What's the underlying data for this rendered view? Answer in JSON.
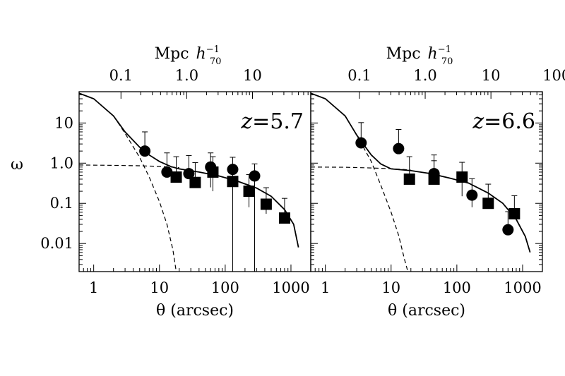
{
  "chart_data": {
    "type": "scatter",
    "y_axis": {
      "label": "ω",
      "scale": "log",
      "range": [
        0.002,
        60
      ],
      "ticks": [
        10,
        1.0,
        0.1,
        0.01
      ],
      "tick_labels": [
        "10",
        "1.0",
        "0.1",
        "0.01"
      ]
    },
    "x_axis": {
      "label": "θ (arcsec)",
      "scale": "log",
      "range": [
        0.6,
        2000
      ],
      "ticks": [
        1,
        10,
        100,
        1000
      ],
      "tick_labels": [
        "1",
        "10",
        "100",
        "1000"
      ]
    },
    "top_axis": {
      "label_main": "Mpc",
      "label_h": "h",
      "label_sup": "−1",
      "label_sub": "70"
    },
    "panels": [
      {
        "name": "z=5.7",
        "label_z": "z",
        "label_value": "=5.7",
        "top_ticks_arcsec": [
          2.6,
          26,
          260
        ],
        "top_tick_labels": [
          "0.1",
          "1.0",
          "10"
        ],
        "circles": [
          {
            "x": 6,
            "y": 2.0,
            "yerr": [
              0.001,
              4.0
            ]
          },
          {
            "x": 13,
            "y": 0.6,
            "yerr": [
              0.001,
              1.2
            ]
          },
          {
            "x": 28,
            "y": 0.55,
            "yerr": [
              0.001,
              1.0
            ]
          },
          {
            "x": 60,
            "y": 0.8,
            "yerr": [
              0.55,
              1.0
            ]
          },
          {
            "x": 130,
            "y": 0.7,
            "yerr": [
              0.7,
              0.7
            ]
          },
          {
            "x": 280,
            "y": 0.48,
            "yerr": [
              0.48,
              0.48
            ]
          }
        ],
        "squares": [
          {
            "x": 18,
            "y": 0.45,
            "yerr": [
              0.001,
              1.0
            ]
          },
          {
            "x": 35,
            "y": 0.33,
            "yerr": [
              0.001,
              0.7
            ]
          },
          {
            "x": 65,
            "y": 0.6,
            "yerr": [
              0.4,
              0.85
            ]
          },
          {
            "x": 130,
            "y": 0.35,
            "yerr": [
              0.23,
              0.5
            ]
          },
          {
            "x": 230,
            "y": 0.2,
            "yerr": [
              0.12,
              0.32
            ]
          },
          {
            "x": 420,
            "y": 0.095,
            "yerr": [
              0.04,
              0.15
            ]
          },
          {
            "x": 800,
            "y": 0.043,
            "yerr": [
              0.001,
              0.09
            ]
          }
        ],
        "total_curve": {
          "x": [
            0.6,
            1,
            2,
            3,
            5,
            7,
            10,
            15,
            20,
            40,
            80,
            150,
            300,
            500,
            800,
            1100,
            1300
          ],
          "y": [
            55,
            40,
            15,
            6,
            2.5,
            1.6,
            1.1,
            0.82,
            0.72,
            0.6,
            0.48,
            0.36,
            0.24,
            0.15,
            0.07,
            0.03,
            0.008
          ]
        },
        "small_scale_curve": {
          "x": [
            0.6,
            1,
            2,
            3,
            5,
            7,
            10,
            13,
            16,
            18
          ],
          "y": [
            55,
            40,
            15,
            5.5,
            1.4,
            0.45,
            0.11,
            0.03,
            0.007,
            0.002
          ]
        },
        "large_scale_curve": {
          "x": [
            0.6,
            2,
            5,
            10,
            15,
            20
          ],
          "y": [
            0.9,
            0.88,
            0.86,
            0.83,
            0.8,
            0.77
          ]
        }
      },
      {
        "name": "z=6.6",
        "label_z": "z",
        "label_value": "=6.6",
        "top_ticks_arcsec": [
          3.3,
          33,
          330,
          3300
        ],
        "top_tick_labels": [
          "0.1",
          "1.0",
          "10",
          "100"
        ],
        "circles": [
          {
            "x": 3.5,
            "y": 3.2,
            "yerr": [
              0.001,
              7.0
            ]
          },
          {
            "x": 13,
            "y": 2.3,
            "yerr": [
              0.15,
              4.6
            ]
          },
          {
            "x": 45,
            "y": 0.55,
            "yerr": [
              0.07,
              1.05
            ]
          },
          {
            "x": 170,
            "y": 0.16,
            "yerr": [
              0.08,
              0.25
            ]
          },
          {
            "x": 600,
            "y": 0.022,
            "yerr": [
              0.005,
              0.04
            ]
          }
        ],
        "squares": [
          {
            "x": 19,
            "y": 0.4,
            "yerr": [
              0.001,
              1.05
            ]
          },
          {
            "x": 45,
            "y": 0.4,
            "yerr": [
              0.065,
              0.75
            ]
          },
          {
            "x": 120,
            "y": 0.45,
            "yerr": [
              0.3,
              0.6
            ]
          },
          {
            "x": 300,
            "y": 0.1,
            "yerr": [
              0.006,
              0.2
            ]
          },
          {
            "x": 750,
            "y": 0.055,
            "yerr": [
              0.003,
              0.1
            ]
          }
        ],
        "total_curve": {
          "x": [
            0.6,
            1,
            2,
            3,
            5,
            7,
            10,
            20,
            40,
            80,
            150,
            300,
            500,
            800,
            1100,
            1300
          ],
          "y": [
            55,
            40,
            15,
            5,
            1.6,
            0.95,
            0.72,
            0.65,
            0.55,
            0.42,
            0.32,
            0.18,
            0.1,
            0.04,
            0.015,
            0.006
          ]
        },
        "small_scale_curve": {
          "x": [
            0.6,
            1,
            2,
            3,
            5,
            7,
            10,
            13,
            16,
            18
          ],
          "y": [
            55,
            40,
            15,
            5,
            1.1,
            0.28,
            0.06,
            0.016,
            0.004,
            0.002
          ]
        },
        "large_scale_curve": {
          "x": [
            0.6,
            2,
            5,
            10,
            15,
            20
          ],
          "y": [
            0.8,
            0.79,
            0.76,
            0.73,
            0.7,
            0.67
          ]
        }
      }
    ]
  }
}
